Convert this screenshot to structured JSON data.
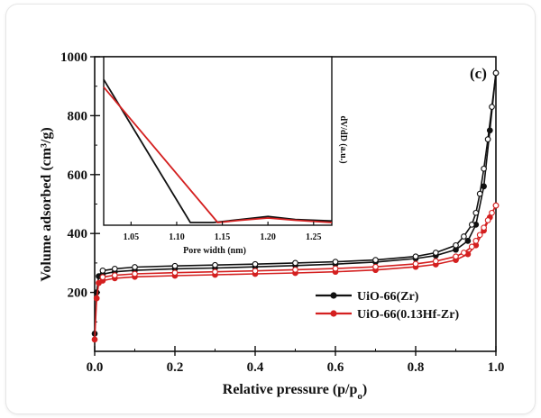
{
  "chart_data": {
    "type": "line",
    "panel_label": "(c)",
    "xlabel": "Relative pressure (p/p",
    "xlabel_sub": "o",
    "xlabel_close": ")",
    "ylabel": "Volume adsorbed (cm³/g)",
    "xlim": [
      0.0,
      1.0
    ],
    "ylim": [
      0,
      1000
    ],
    "xticks": [
      "0.0",
      "0.2",
      "0.4",
      "0.6",
      "0.8",
      "1.0"
    ],
    "yticks": [
      "200",
      "400",
      "600",
      "800",
      "1000"
    ],
    "legend_position": "lower-right",
    "series": [
      {
        "name": "UiO-66(Zr)",
        "color": "#111111",
        "adsorption": [
          [
            0.0,
            60
          ],
          [
            0.005,
            200
          ],
          [
            0.01,
            255
          ],
          [
            0.02,
            262
          ],
          [
            0.05,
            270
          ],
          [
            0.1,
            275
          ],
          [
            0.2,
            280
          ],
          [
            0.3,
            283
          ],
          [
            0.4,
            287
          ],
          [
            0.5,
            291
          ],
          [
            0.6,
            296
          ],
          [
            0.7,
            303
          ],
          [
            0.8,
            315
          ],
          [
            0.85,
            325
          ],
          [
            0.9,
            345
          ],
          [
            0.93,
            375
          ],
          [
            0.95,
            430
          ],
          [
            0.97,
            560
          ],
          [
            0.985,
            750
          ],
          [
            1.0,
            945
          ]
        ],
        "desorption": [
          [
            1.0,
            945
          ],
          [
            0.99,
            830
          ],
          [
            0.98,
            720
          ],
          [
            0.97,
            620
          ],
          [
            0.96,
            535
          ],
          [
            0.95,
            470
          ],
          [
            0.94,
            430
          ],
          [
            0.92,
            390
          ],
          [
            0.9,
            360
          ],
          [
            0.85,
            335
          ],
          [
            0.8,
            322
          ],
          [
            0.7,
            310
          ],
          [
            0.6,
            304
          ],
          [
            0.5,
            300
          ],
          [
            0.4,
            296
          ],
          [
            0.3,
            293
          ],
          [
            0.2,
            290
          ],
          [
            0.1,
            286
          ],
          [
            0.05,
            280
          ],
          [
            0.02,
            274
          ]
        ]
      },
      {
        "name": "UiO-66(0.13Hf-Zr)",
        "color": "#d42020",
        "adsorption": [
          [
            0.0,
            40
          ],
          [
            0.005,
            180
          ],
          [
            0.01,
            232
          ],
          [
            0.02,
            240
          ],
          [
            0.05,
            248
          ],
          [
            0.1,
            253
          ],
          [
            0.2,
            257
          ],
          [
            0.3,
            260
          ],
          [
            0.4,
            263
          ],
          [
            0.5,
            266
          ],
          [
            0.6,
            270
          ],
          [
            0.7,
            276
          ],
          [
            0.8,
            287
          ],
          [
            0.85,
            295
          ],
          [
            0.9,
            310
          ],
          [
            0.93,
            330
          ],
          [
            0.95,
            360
          ],
          [
            0.97,
            410
          ],
          [
            0.985,
            455
          ],
          [
            1.0,
            495
          ]
        ],
        "desorption": [
          [
            1.0,
            495
          ],
          [
            0.99,
            470
          ],
          [
            0.98,
            445
          ],
          [
            0.97,
            420
          ],
          [
            0.96,
            395
          ],
          [
            0.95,
            375
          ],
          [
            0.94,
            355
          ],
          [
            0.92,
            335
          ],
          [
            0.9,
            322
          ],
          [
            0.85,
            306
          ],
          [
            0.8,
            297
          ],
          [
            0.7,
            287
          ],
          [
            0.6,
            281
          ],
          [
            0.5,
            277
          ],
          [
            0.4,
            273
          ],
          [
            0.3,
            270
          ],
          [
            0.2,
            267
          ],
          [
            0.1,
            263
          ],
          [
            0.05,
            258
          ],
          [
            0.02,
            252
          ]
        ]
      }
    ],
    "inset": {
      "type": "line",
      "xlabel": "Pore width (nm)",
      "ylabel": "dV/dD (a.u.)",
      "xlim": [
        1.02,
        1.27
      ],
      "ylim": [
        0,
        1
      ],
      "xticks": [
        "1.05",
        "1.10",
        "1.15",
        "1.20",
        "1.25"
      ],
      "xtick_values": [
        1.05,
        1.1,
        1.15,
        1.2,
        1.25
      ],
      "series": [
        {
          "color": "#111111",
          "values": [
            [
              1.02,
              0.95
            ],
            [
              1.115,
              0.0
            ],
            [
              1.14,
              0.0
            ],
            [
              1.17,
              0.02
            ],
            [
              1.2,
              0.04
            ],
            [
              1.23,
              0.02
            ],
            [
              1.27,
              0.01
            ]
          ]
        },
        {
          "color": "#d42020",
          "values": [
            [
              1.02,
              0.9
            ],
            [
              1.145,
              0.0
            ],
            [
              1.17,
              0.015
            ],
            [
              1.2,
              0.03
            ],
            [
              1.23,
              0.015
            ],
            [
              1.27,
              0.0
            ]
          ]
        }
      ]
    }
  }
}
